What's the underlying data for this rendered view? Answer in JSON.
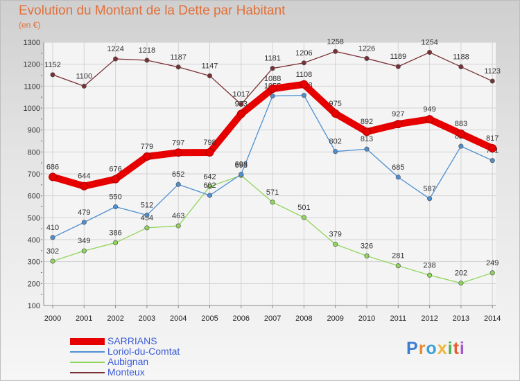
{
  "chart_data": {
    "type": "line",
    "title": "Evolution du Montant de la Dette par Habitant",
    "subtitle": "(en €)",
    "x": [
      "2000",
      "2001",
      "2002",
      "2003",
      "2004",
      "2005",
      "2006",
      "2007",
      "2008",
      "2009",
      "2010",
      "2011",
      "2012",
      "2013",
      "2014"
    ],
    "ylim": [
      100,
      1300
    ],
    "yticks": [
      "1300",
      "1200",
      "1100",
      "1000",
      "900",
      "800",
      "700",
      "600",
      "500",
      "400",
      "300",
      "200",
      "100"
    ],
    "grid": true,
    "legend_position": "bottom-left",
    "series": [
      {
        "name": "Monteux",
        "color": "#7a2f34",
        "values": [
          1152,
          1100,
          1224,
          1218,
          1187,
          1147,
          1017,
          1181,
          1206,
          1258,
          1226,
          1189,
          1254,
          1188,
          1123
        ]
      },
      {
        "name": "Aubignan",
        "color": "#8fd65a",
        "values": [
          302,
          349,
          386,
          454,
          463,
          642,
          693,
          571,
          501,
          379,
          326,
          281,
          238,
          202,
          249
        ]
      },
      {
        "name": "Loriol-du-Comtat",
        "color": "#4d8fd1",
        "values": [
          410,
          479,
          550,
          512,
          652,
          602,
          698,
          1055,
          1058,
          802,
          813,
          685,
          587,
          826,
          761
        ]
      },
      {
        "name": "SARRIANS",
        "color": "#e60000",
        "values": [
          686,
          644,
          676,
          779,
          797,
          798,
          973,
          1088,
          1108,
          975,
          892,
          927,
          949,
          883,
          817
        ]
      }
    ]
  },
  "legend": {
    "items": [
      {
        "label": "SARRIANS",
        "color": "#e60000",
        "thick": true
      },
      {
        "label": "Loriol-du-Comtat",
        "color": "#4d8fd1",
        "thick": false
      },
      {
        "label": "Aubignan",
        "color": "#8fd65a",
        "thick": false
      },
      {
        "label": "Monteux",
        "color": "#7a2f34",
        "thick": false
      }
    ]
  },
  "logo": {
    "text": "Proxiti"
  }
}
